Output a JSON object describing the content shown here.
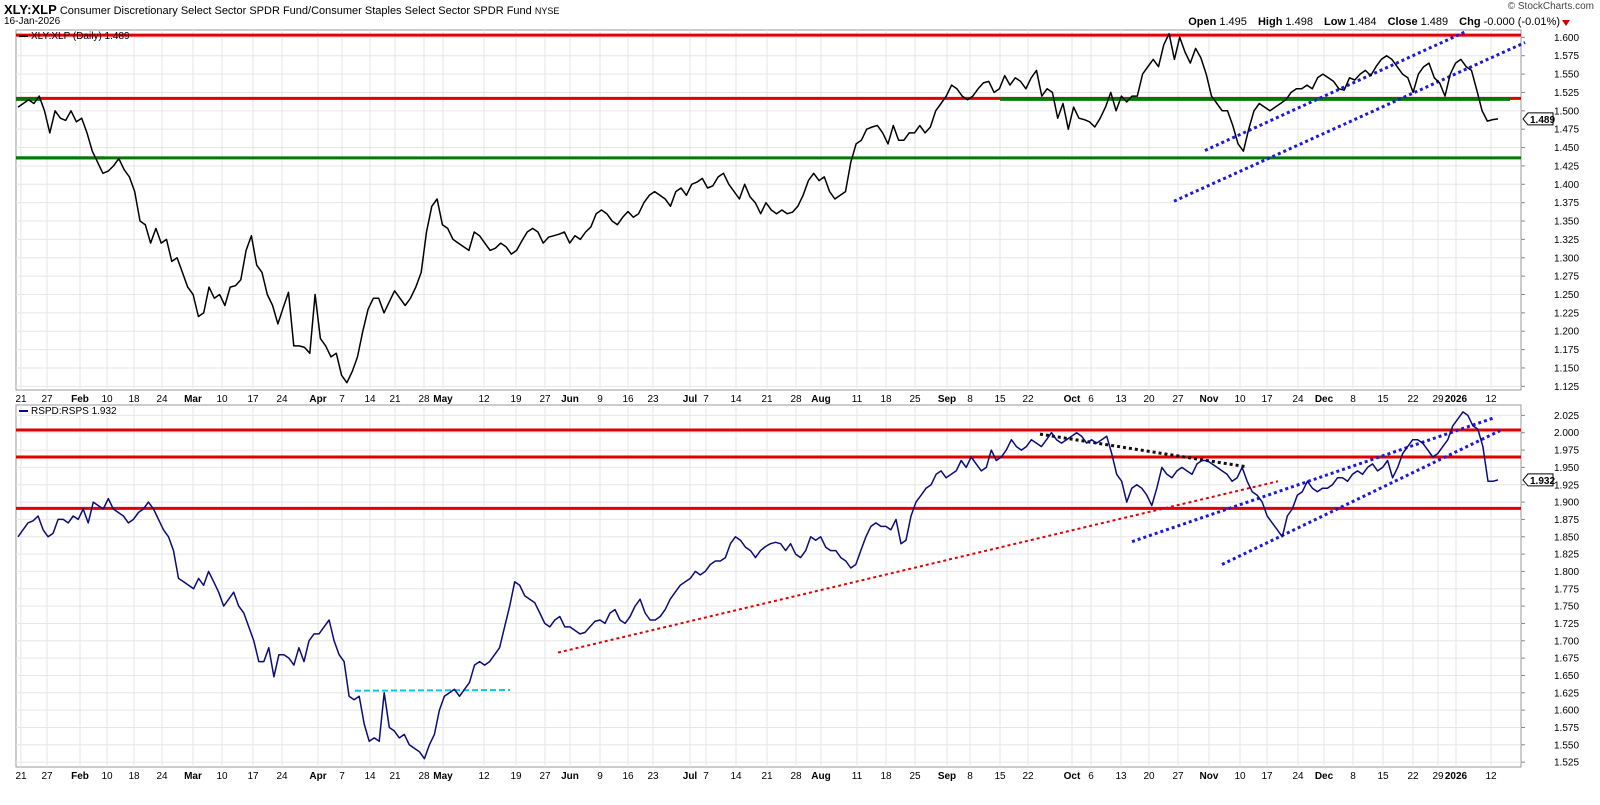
{
  "header": {
    "symbol": "XLY:XLP",
    "description": "Consumer Discretionary Select Sector SPDR Fund/Consumer Staples Select Sector SPDR Fund",
    "exchange": "NYSE",
    "date": "16-Jan-2026",
    "credit": "© StockCharts.com",
    "open_label": "Open",
    "open": "1.495",
    "high_label": "High",
    "high": "1.498",
    "low_label": "Low",
    "low": "1.484",
    "close_label": "Close",
    "close": "1.489",
    "chg_label": "Chg",
    "chg": "-0.000 (-0.01%)",
    "chg_color": "#cc0000"
  },
  "x_axis": {
    "labels": [
      "21",
      "27",
      "Feb",
      "10",
      "18",
      "24",
      "Mar",
      "10",
      "17",
      "24",
      "Apr",
      "7",
      "14",
      "21",
      "28",
      "May",
      "12",
      "19",
      "27",
      "Jun",
      "9",
      "16",
      "23",
      "Jul",
      "7",
      "14",
      "21",
      "28",
      "Aug",
      "11",
      "18",
      "25",
      "Sep",
      "8",
      "15",
      "22",
      "Oct",
      "6",
      "13",
      "20",
      "27",
      "Nov",
      "10",
      "17",
      "24",
      "Dec",
      "8",
      "15",
      "22",
      "29",
      "2026",
      "12"
    ],
    "bold": [
      "Feb",
      "Mar",
      "Apr",
      "May",
      "Jun",
      "Jul",
      "Aug",
      "Sep",
      "Oct",
      "Nov",
      "Dec",
      "2026"
    ]
  },
  "chart_data": [
    {
      "type": "line",
      "legend": "XLY:XLP (Daily) 1.489",
      "line_color": "#000000",
      "last_value": "1.489",
      "ylim": [
        1.12,
        1.61
      ],
      "yticks": [
        "1.125",
        "1.150",
        "1.175",
        "1.200",
        "1.225",
        "1.250",
        "1.275",
        "1.300",
        "1.325",
        "1.350",
        "1.375",
        "1.400",
        "1.425",
        "1.450",
        "1.475",
        "1.500",
        "1.525",
        "1.550",
        "1.575",
        "1.600"
      ],
      "y": [
        1.505,
        1.51,
        1.515,
        1.51,
        1.52,
        1.5,
        1.47,
        1.5,
        1.49,
        1.487,
        1.5,
        1.485,
        1.49,
        1.47,
        1.445,
        1.43,
        1.415,
        1.418,
        1.425,
        1.435,
        1.42,
        1.41,
        1.39,
        1.35,
        1.345,
        1.32,
        1.34,
        1.32,
        1.325,
        1.295,
        1.3,
        1.28,
        1.26,
        1.25,
        1.22,
        1.225,
        1.26,
        1.245,
        1.25,
        1.235,
        1.26,
        1.262,
        1.27,
        1.31,
        1.33,
        1.29,
        1.28,
        1.25,
        1.235,
        1.21,
        1.232,
        1.253,
        1.18,
        1.18,
        1.178,
        1.17,
        1.25,
        1.19,
        1.18,
        1.165,
        1.17,
        1.14,
        1.13,
        1.145,
        1.165,
        1.2,
        1.23,
        1.245,
        1.245,
        1.225,
        1.24,
        1.255,
        1.245,
        1.235,
        1.245,
        1.26,
        1.28,
        1.335,
        1.37,
        1.38,
        1.345,
        1.34,
        1.325,
        1.32,
        1.315,
        1.31,
        1.335,
        1.33,
        1.32,
        1.31,
        1.313,
        1.32,
        1.315,
        1.305,
        1.31,
        1.323,
        1.335,
        1.34,
        1.335,
        1.32,
        1.328,
        1.33,
        1.332,
        1.335,
        1.32,
        1.33,
        1.325,
        1.335,
        1.342,
        1.36,
        1.365,
        1.36,
        1.35,
        1.345,
        1.355,
        1.363,
        1.355,
        1.36,
        1.375,
        1.385,
        1.39,
        1.385,
        1.38,
        1.37,
        1.39,
        1.395,
        1.385,
        1.4,
        1.403,
        1.408,
        1.395,
        1.398,
        1.41,
        1.415,
        1.4,
        1.39,
        1.38,
        1.4,
        1.383,
        1.375,
        1.36,
        1.375,
        1.365,
        1.36,
        1.365,
        1.36,
        1.362,
        1.37,
        1.385,
        1.405,
        1.415,
        1.405,
        1.41,
        1.39,
        1.38,
        1.385,
        1.39,
        1.43,
        1.455,
        1.46,
        1.475,
        1.478,
        1.48,
        1.47,
        1.455,
        1.48,
        1.46,
        1.46,
        1.47,
        1.47,
        1.48,
        1.47,
        1.478,
        1.5,
        1.51,
        1.52,
        1.535,
        1.53,
        1.52,
        1.515,
        1.52,
        1.53,
        1.538,
        1.54,
        1.525,
        1.53,
        1.548,
        1.535,
        1.545,
        1.54,
        1.53,
        1.545,
        1.555,
        1.52,
        1.53,
        1.525,
        1.49,
        1.51,
        1.475,
        1.505,
        1.49,
        1.488,
        1.485,
        1.478,
        1.49,
        1.505,
        1.525,
        1.5,
        1.52,
        1.512,
        1.52,
        1.52,
        1.55,
        1.56,
        1.57,
        1.56,
        1.59,
        1.605,
        1.57,
        1.6,
        1.58,
        1.565,
        1.585,
        1.572,
        1.55,
        1.52,
        1.51,
        1.5,
        1.5,
        1.48,
        1.455,
        1.445,
        1.475,
        1.5,
        1.51,
        1.505,
        1.5,
        1.505,
        1.51,
        1.515,
        1.525,
        1.53,
        1.53,
        1.535,
        1.53,
        1.545,
        1.55,
        1.545,
        1.54,
        1.53,
        1.528,
        1.545,
        1.542,
        1.55,
        1.555,
        1.548,
        1.56,
        1.57,
        1.575,
        1.57,
        1.56,
        1.55,
        1.545,
        1.525,
        1.55,
        1.56,
        1.565,
        1.545,
        1.538,
        1.52,
        1.55,
        1.565,
        1.57,
        1.56,
        1.555,
        1.528,
        1.5,
        1.486,
        1.488,
        1.489
      ]
    },
    {
      "type": "line",
      "legend": "RSPD:RSPS 1.932",
      "line_color": "#0b0b7a",
      "last_value": "1.932",
      "ylim": [
        1.518,
        2.04
      ],
      "yticks": [
        "1.525",
        "1.550",
        "1.575",
        "1.600",
        "1.625",
        "1.650",
        "1.675",
        "1.700",
        "1.725",
        "1.750",
        "1.775",
        "1.800",
        "1.825",
        "1.850",
        "1.875",
        "1.900",
        "1.925",
        "1.950",
        "1.975",
        "2.000",
        "2.025"
      ],
      "y": [
        1.85,
        1.86,
        1.87,
        1.873,
        1.88,
        1.86,
        1.85,
        1.855,
        1.875,
        1.875,
        1.87,
        1.88,
        1.875,
        1.89,
        1.87,
        1.9,
        1.895,
        1.89,
        1.905,
        1.89,
        1.885,
        1.88,
        1.87,
        1.875,
        1.885,
        1.89,
        1.9,
        1.89,
        1.875,
        1.86,
        1.85,
        1.83,
        1.79,
        1.785,
        1.78,
        1.775,
        1.79,
        1.78,
        1.8,
        1.785,
        1.77,
        1.75,
        1.76,
        1.77,
        1.75,
        1.74,
        1.72,
        1.7,
        1.67,
        1.67,
        1.69,
        1.648,
        1.68,
        1.68,
        1.675,
        1.665,
        1.69,
        1.67,
        1.7,
        1.71,
        1.71,
        1.72,
        1.73,
        1.7,
        1.68,
        1.67,
        1.62,
        1.615,
        1.62,
        1.58,
        1.555,
        1.56,
        1.555,
        1.625,
        1.575,
        1.57,
        1.56,
        1.565,
        1.55,
        1.545,
        1.54,
        1.53,
        1.55,
        1.565,
        1.6,
        1.62,
        1.625,
        1.63,
        1.62,
        1.63,
        1.64,
        1.665,
        1.67,
        1.665,
        1.67,
        1.68,
        1.69,
        1.72,
        1.75,
        1.785,
        1.78,
        1.765,
        1.76,
        1.755,
        1.74,
        1.725,
        1.72,
        1.73,
        1.735,
        1.72,
        1.72,
        1.715,
        1.71,
        1.712,
        1.72,
        1.728,
        1.73,
        1.725,
        1.74,
        1.745,
        1.73,
        1.725,
        1.735,
        1.75,
        1.76,
        1.74,
        1.73,
        1.73,
        1.735,
        1.745,
        1.76,
        1.77,
        1.78,
        1.785,
        1.79,
        1.8,
        1.795,
        1.8,
        1.81,
        1.815,
        1.815,
        1.82,
        1.84,
        1.85,
        1.845,
        1.835,
        1.83,
        1.82,
        1.83,
        1.836,
        1.84,
        1.842,
        1.84,
        1.83,
        1.84,
        1.825,
        1.82,
        1.83,
        1.85,
        1.845,
        1.85,
        1.835,
        1.83,
        1.83,
        1.82,
        1.815,
        1.805,
        1.81,
        1.83,
        1.85,
        1.865,
        1.87,
        1.865,
        1.865,
        1.86,
        1.875,
        1.84,
        1.845,
        1.88,
        1.9,
        1.91,
        1.92,
        1.925,
        1.94,
        1.945,
        1.935,
        1.94,
        1.945,
        1.96,
        1.95,
        1.965,
        1.955,
        1.945,
        1.95,
        1.975,
        1.96,
        1.965,
        1.975,
        1.99,
        1.98,
        1.975,
        1.98,
        1.99,
        1.985,
        1.98,
        1.99,
        2.0,
        1.99,
        1.985,
        1.99,
        1.995,
        2.0,
        1.995,
        1.985,
        1.99,
        1.985,
        1.99,
        1.995,
        1.97,
        1.94,
        1.93,
        1.9,
        1.92,
        1.925,
        1.92,
        1.91,
        1.895,
        1.92,
        1.95,
        1.94,
        1.935,
        1.945,
        1.95,
        1.945,
        1.94,
        1.955,
        1.96,
        1.96,
        1.955,
        1.95,
        1.945,
        1.94,
        1.93,
        1.935,
        1.95,
        1.93,
        1.915,
        1.91,
        1.9,
        1.88,
        1.87,
        1.86,
        1.85,
        1.88,
        1.89,
        1.91,
        1.915,
        1.93,
        1.92,
        1.915,
        1.92,
        1.92,
        1.925,
        1.935,
        1.935,
        1.93,
        1.94,
        1.945,
        1.94,
        1.95,
        1.955,
        1.945,
        1.95,
        1.96,
        1.935,
        1.95,
        1.97,
        1.98,
        1.99,
        1.99,
        1.985,
        1.975,
        1.965,
        1.97,
        1.98,
        1.99,
        2.01,
        2.02,
        2.03,
        2.025,
        2.01,
        2.005,
        1.98,
        1.93,
        1.93,
        1.932
      ]
    }
  ]
}
